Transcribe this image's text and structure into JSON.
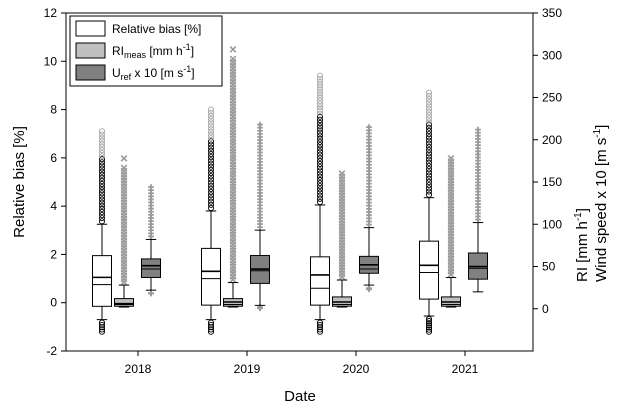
{
  "chart_data": {
    "type": "box",
    "xlabel": "Date",
    "ylabel_left": "Relative bias [%]",
    "ylabel_right_line1": "RI [mm h",
    "ylabel_right_line1_sup": "-1",
    "ylabel_right_line1_end": "]",
    "ylabel_right_line2": "Wind speed x 10 [m s",
    "ylabel_right_line2_sup": "-1",
    "ylabel_right_line2_end": "]",
    "left_axis": {
      "min": -2,
      "max": 12,
      "ticks": [
        -2,
        0,
        2,
        4,
        6,
        8,
        10,
        12
      ]
    },
    "right_axis": {
      "min": -50,
      "max": 350,
      "ticks": [
        0,
        50,
        100,
        150,
        200,
        250,
        300,
        350
      ]
    },
    "categories": [
      "2018",
      "2019",
      "2020",
      "2021"
    ],
    "legend": {
      "placement": "top-left",
      "items": [
        {
          "main": "Relative bias [%]",
          "sub": "",
          "rest": "",
          "sup": "",
          "end": ""
        },
        {
          "main": "RI",
          "sub": "meas",
          "rest": " [mm h",
          "sup": "-1",
          "end": "]"
        },
        {
          "main": "U",
          "sub": "ref",
          "rest": " x 10 [m s",
          "sup": "-1",
          "end": "]"
        }
      ]
    },
    "series": [
      {
        "name": "Relative bias [%]",
        "axis": "left",
        "fill": "#ffffff",
        "outlier_marker": "circle",
        "boxes": [
          {
            "whisker_low": -0.7,
            "q1": -0.15,
            "median": 0.75,
            "mean": 1.05,
            "q3": 1.95,
            "whisker_high": 3.25,
            "outlier_high": 7.1,
            "outlier_low": -1.2
          },
          {
            "whisker_low": -0.7,
            "q1": -0.1,
            "median": 1.0,
            "mean": 1.3,
            "q3": 2.25,
            "whisker_high": 3.8,
            "outlier_high": 8.0,
            "outlier_low": -1.2
          },
          {
            "whisker_low": -0.7,
            "q1": -0.1,
            "median": 0.6,
            "mean": 1.15,
            "q3": 1.9,
            "whisker_high": 4.05,
            "outlier_high": 9.4,
            "outlier_low": -1.2
          },
          {
            "whisker_low": -0.55,
            "q1": 0.15,
            "median": 1.25,
            "mean": 1.55,
            "q3": 2.55,
            "whisker_high": 4.35,
            "outlier_high": 8.7,
            "outlier_low": -1.2
          }
        ]
      },
      {
        "name": "RImeas [mm h-1]",
        "axis": "right",
        "fill": "#c0c0c0",
        "outlier_marker": "x",
        "boxes": [
          {
            "whisker_low": 2,
            "q1": 3,
            "median": 5,
            "mean": 6,
            "q3": 12,
            "whisker_high": 28,
            "outlier_high": 178,
            "outlier_low": null
          },
          {
            "whisker_low": 2,
            "q1": 3,
            "median": 5,
            "mean": 8,
            "q3": 12,
            "whisker_high": 31,
            "outlier_high": 307,
            "outlier_low": null
          },
          {
            "whisker_low": 2,
            "q1": 3,
            "median": 5,
            "mean": 8,
            "q3": 14,
            "whisker_high": 34,
            "outlier_high": 160,
            "outlier_low": null
          },
          {
            "whisker_low": 2,
            "q1": 3,
            "median": 5,
            "mean": 8,
            "q3": 14,
            "whisker_high": 37,
            "outlier_high": 178,
            "outlier_low": null
          }
        ]
      },
      {
        "name": "Uref x 10 [m s-1]",
        "axis": "right",
        "fill": "#808080",
        "outlier_marker": "plus",
        "boxes": [
          {
            "whisker_low": 22,
            "q1": 37,
            "median": 47,
            "mean": 51,
            "q3": 59,
            "whisker_high": 82,
            "outlier_high": 144,
            "outlier_low": 18
          },
          {
            "whisker_low": 4,
            "q1": 30,
            "median": 45,
            "mean": 47,
            "q3": 63,
            "whisker_high": 93,
            "outlier_high": 218,
            "outlier_low": 2
          },
          {
            "whisker_low": 28,
            "q1": 42,
            "median": 47,
            "mean": 52,
            "q3": 62,
            "whisker_high": 96,
            "outlier_high": 215,
            "outlier_low": 23
          },
          {
            "whisker_low": 20,
            "q1": 35,
            "median": 48,
            "mean": 50,
            "q3": 66,
            "whisker_high": 102,
            "outlier_high": 212,
            "outlier_low": null
          }
        ]
      }
    ]
  }
}
